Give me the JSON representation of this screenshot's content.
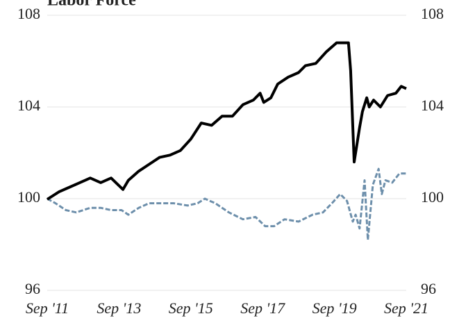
{
  "chart_data": {
    "type": "line",
    "title": "Labor Force",
    "xlim": [
      2011.67,
      2021.67
    ],
    "xticks": [
      {
        "value": 2011.67,
        "label": "Sep '11"
      },
      {
        "value": 2013.67,
        "label": "Sep '13"
      },
      {
        "value": 2015.67,
        "label": "Sep '15"
      },
      {
        "value": 2017.67,
        "label": "Sep '17"
      },
      {
        "value": 2019.67,
        "label": "Sep '19"
      },
      {
        "value": 2021.67,
        "label": "Sep '21"
      }
    ],
    "ylim": [
      96,
      108
    ],
    "yticks": [
      96,
      100,
      104,
      108
    ],
    "y2lim": [
      96,
      108
    ],
    "y2ticks": [
      96,
      100,
      104,
      108
    ],
    "grid": true,
    "series": [
      {
        "color": "#000000",
        "dash": false,
        "x": [
          2011.67,
          2012.0,
          2012.29,
          2012.58,
          2012.87,
          2013.16,
          2013.45,
          2013.78,
          2013.93,
          2014.22,
          2014.51,
          2014.8,
          2015.09,
          2015.38,
          2015.67,
          2015.96,
          2016.25,
          2016.54,
          2016.83,
          2017.12,
          2017.41,
          2017.6,
          2017.7,
          2017.9,
          2018.09,
          2018.38,
          2018.67,
          2018.86,
          2019.15,
          2019.44,
          2019.73,
          2019.96,
          2020.06,
          2020.12,
          2020.22,
          2020.37,
          2020.45,
          2020.57,
          2020.64,
          2020.76,
          2020.95,
          2021.15,
          2021.38,
          2021.53,
          2021.67
        ],
        "values": [
          99.97,
          100.3,
          100.5,
          100.7,
          100.9,
          100.7,
          100.9,
          100.4,
          100.8,
          101.2,
          101.5,
          101.8,
          101.9,
          102.1,
          102.6,
          103.3,
          103.2,
          103.6,
          103.6,
          104.1,
          104.3,
          104.6,
          104.2,
          104.4,
          105.0,
          105.3,
          105.5,
          105.8,
          105.9,
          106.4,
          106.8,
          106.8,
          106.8,
          105.6,
          101.6,
          103.1,
          103.8,
          104.4,
          104.0,
          104.3,
          104.0,
          104.5,
          104.6,
          104.9,
          104.8
        ]
      },
      {
        "color": "#6d8fab",
        "dash": true,
        "x": [
          2011.67,
          2011.9,
          2012.19,
          2012.48,
          2012.87,
          2013.16,
          2013.45,
          2013.74,
          2013.93,
          2014.22,
          2014.51,
          2015.19,
          2015.58,
          2015.86,
          2016.06,
          2016.35,
          2016.73,
          2017.12,
          2017.47,
          2017.74,
          2017.99,
          2018.28,
          2018.67,
          2019.06,
          2019.35,
          2019.6,
          2019.83,
          2020.02,
          2020.18,
          2020.26,
          2020.37,
          2020.51,
          2020.6,
          2020.74,
          2020.9,
          2020.99,
          2021.09,
          2021.28,
          2021.48,
          2021.67
        ],
        "values": [
          100.0,
          99.8,
          99.5,
          99.4,
          99.6,
          99.6,
          99.5,
          99.5,
          99.3,
          99.6,
          99.8,
          99.8,
          99.7,
          99.8,
          100.0,
          99.8,
          99.4,
          99.1,
          99.2,
          98.8,
          98.8,
          99.1,
          99.0,
          99.3,
          99.4,
          99.8,
          100.2,
          99.9,
          99.0,
          99.3,
          98.7,
          100.8,
          98.2,
          100.6,
          101.3,
          100.2,
          100.8,
          100.7,
          101.1,
          101.1
        ]
      }
    ]
  }
}
